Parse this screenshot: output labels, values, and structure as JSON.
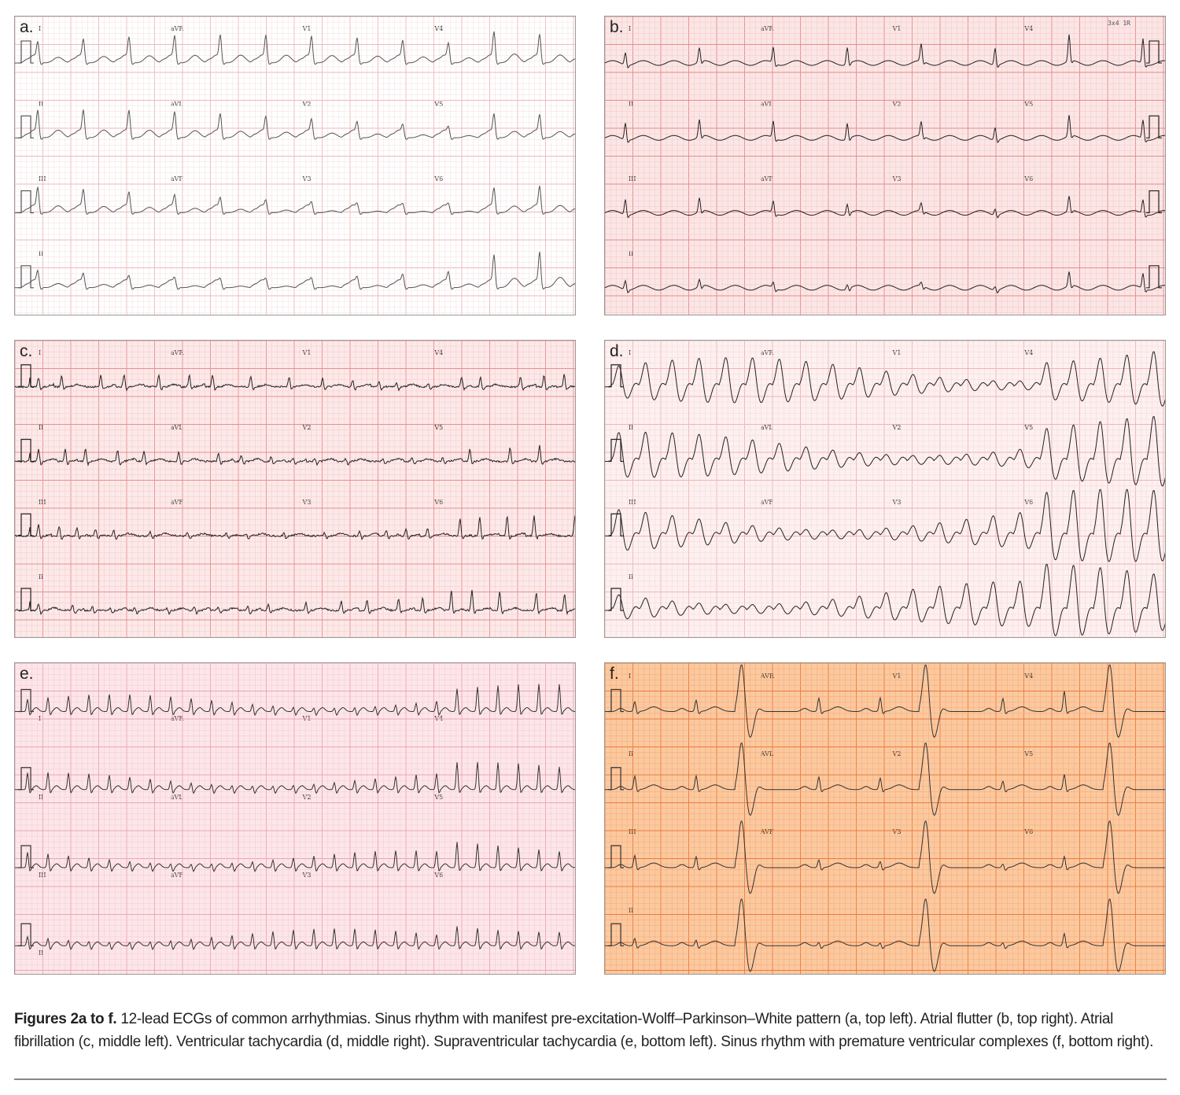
{
  "figure": {
    "panels": [
      {
        "id": "a",
        "letter": "a.",
        "rows": [
          [
            "I",
            "aVR",
            "V1",
            "V4"
          ],
          [
            "II",
            "aVL",
            "V2",
            "V5"
          ],
          [
            "III",
            "aVF",
            "V3",
            "V6"
          ],
          [
            "II"
          ]
        ],
        "rhythm": "wpw",
        "colors": {
          "bg": "#ffffff",
          "minor": "#f6dede",
          "major": "#eeb9b9",
          "trace": "#555555"
        }
      },
      {
        "id": "b",
        "letter": "b.",
        "corner_text": "3x4 1R",
        "rows": [
          [
            "I",
            "aVR",
            "V1",
            "V4"
          ],
          [
            "II",
            "aVL",
            "V2",
            "V5"
          ],
          [
            "III",
            "aVF",
            "V3",
            "V6"
          ],
          [
            "II"
          ]
        ],
        "rhythm": "flutter",
        "colors": {
          "bg": "#fbe6e6",
          "minor": "#f5c6c6",
          "major": "#e88a8a",
          "trace": "#222222"
        }
      },
      {
        "id": "c",
        "letter": "c.",
        "rows": [
          [
            "I",
            "aVR",
            "V1",
            "V4"
          ],
          [
            "II",
            "aVL",
            "V2",
            "V5"
          ],
          [
            "III",
            "aVF",
            "V3",
            "V6"
          ],
          [
            "II"
          ]
        ],
        "rhythm": "afib",
        "colors": {
          "bg": "#fce9e9",
          "minor": "#f6c8c8",
          "major": "#e98e8e",
          "trace": "#222222"
        }
      },
      {
        "id": "d",
        "letter": "d.",
        "rows": [
          [
            "I",
            "aVR",
            "V1",
            "V4"
          ],
          [
            "II",
            "aVL",
            "V2",
            "V5"
          ],
          [
            "III",
            "aVF",
            "V3",
            "V6"
          ],
          [
            "II"
          ]
        ],
        "rhythm": "vt",
        "colors": {
          "bg": "#fdf0f0",
          "minor": "#f7d6d6",
          "major": "#f0b5b5",
          "trace": "#222222"
        }
      },
      {
        "id": "e",
        "letter": "e.",
        "rows": [
          [
            "I",
            "aVR",
            "V1",
            "V4"
          ],
          [
            "II",
            "aVL",
            "V2",
            "V5"
          ],
          [
            "III",
            "aVF",
            "V3",
            "V6"
          ],
          [
            "II"
          ]
        ],
        "rhythm": "svt",
        "colors": {
          "bg": "#fce6ea",
          "minor": "#f5c9d0",
          "major": "#eea5b0",
          "trace": "#333333"
        }
      },
      {
        "id": "f",
        "letter": "f.",
        "rows": [
          [
            "I",
            "AVR",
            "V1",
            "V4"
          ],
          [
            "II",
            "AVL",
            "V2",
            "V5"
          ],
          [
            "III",
            "AVF",
            "V3",
            "V6"
          ],
          [
            "II"
          ]
        ],
        "rhythm": "pvc",
        "colors": {
          "bg": "#fbc9a0",
          "minor": "#f6a972",
          "major": "#ee7a3a",
          "trace": "#333333"
        }
      }
    ],
    "caption": {
      "bold": "Figures 2a to f.",
      "text": " 12-lead ECGs of common arrhythmias. Sinus rhythm with manifest pre-excitation-Wolff–Parkinson–White pattern (a, top left). Atrial flutter  (b, top right). Atrial fibrillation (c, middle left). Ventricular tachycardia (d, middle right).  Supraventricular tachycardia (e, bottom left). Sinus rhythm with premature ventricular complexes (f, bottom right)."
    }
  }
}
